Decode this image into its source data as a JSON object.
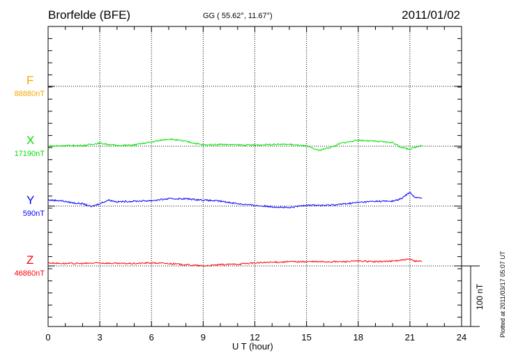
{
  "header": {
    "station": "Brorfelde (BFE)",
    "coords": "GG ( 55.62°,  11.67°)",
    "date": "2011/01/02"
  },
  "footer": {
    "plotted": "Plotted at 2011/03/17 05:07 UT"
  },
  "chart_data": {
    "type": "line",
    "title": "Brorfelde (BFE)",
    "xlabel": "U T (hour)",
    "xlim": [
      0,
      24
    ],
    "xticks": [
      "0",
      "3",
      "6",
      "9",
      "12",
      "15",
      "18",
      "21",
      "24"
    ],
    "scale_bar": "100 nT",
    "grid": true,
    "series": [
      {
        "name": "F",
        "baseline": "88880nT",
        "color": "#f5a800",
        "x": [],
        "y": []
      },
      {
        "name": "X",
        "baseline": "17190nT",
        "color": "#00e000",
        "x": [
          0,
          1,
          2,
          3,
          4,
          5,
          6,
          7,
          8,
          9,
          10,
          11,
          12,
          13,
          14,
          15,
          15.7,
          16.5,
          17,
          18,
          19,
          20,
          20.5,
          21,
          21.7
        ],
        "y": [
          0,
          1,
          1,
          5,
          1,
          2,
          7,
          12,
          8,
          2,
          3,
          2,
          2,
          3,
          3,
          0,
          -7,
          -1,
          5,
          10,
          8,
          6,
          -2,
          -5,
          2
        ]
      },
      {
        "name": "Y",
        "baseline": "590nT",
        "color": "#0000ff",
        "x": [
          0,
          0.7,
          1.5,
          2,
          2.5,
          3,
          3.5,
          4,
          5,
          6,
          7,
          8,
          9,
          10,
          11,
          12,
          13,
          14,
          15,
          16,
          17,
          18,
          19,
          20,
          20.5,
          21,
          21.3,
          21.7
        ],
        "y": [
          10,
          9,
          5,
          4,
          -1,
          4,
          10,
          7,
          8,
          9,
          12,
          12,
          10,
          8,
          4,
          1,
          -1,
          -3,
          2,
          1,
          3,
          6,
          8,
          8,
          12,
          23,
          14,
          13
        ]
      },
      {
        "name": "Z",
        "baseline": "46860nT",
        "color": "#ff0000",
        "x": [
          0,
          1,
          2,
          3,
          4,
          5,
          6,
          7,
          8,
          9,
          10,
          11,
          12,
          13,
          14,
          15,
          16,
          17,
          18,
          19,
          20,
          21,
          21.3,
          21.7
        ],
        "y": [
          5,
          4,
          4,
          5,
          4,
          4,
          5,
          4,
          2,
          0,
          2,
          3,
          5,
          6,
          7,
          7,
          7,
          7,
          8,
          7,
          8,
          11,
          8,
          8
        ]
      }
    ]
  }
}
